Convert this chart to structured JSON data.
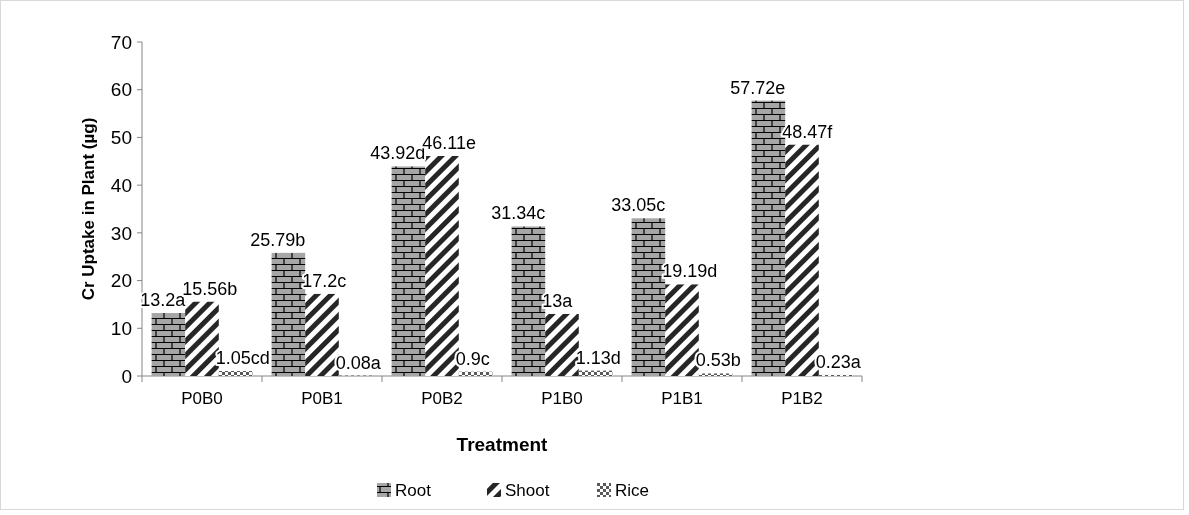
{
  "chart_data": {
    "type": "bar",
    "xlabel": "Treatment",
    "ylabel": "Cr Uptake in Plant (µg)",
    "categories": [
      "P0B0",
      "P0B1",
      "P0B2",
      "P1B0",
      "P1B1",
      "P1B2"
    ],
    "series": [
      {
        "name": "Root",
        "color": "#a6a6a6",
        "values": [
          13.2,
          25.79,
          43.92,
          31.34,
          33.05,
          57.72
        ],
        "value_labels": [
          "13.2a",
          "25.79b",
          "43.92d",
          "31.34c",
          "33.05c",
          "57.72e"
        ]
      },
      {
        "name": "Shoot",
        "color": "#262626",
        "values": [
          15.56,
          17.2,
          46.11,
          13,
          19.19,
          48.47
        ],
        "value_labels": [
          "15.56b",
          "17.2c",
          "46.11e",
          "13a",
          "19.19d",
          "48.47f"
        ]
      },
      {
        "name": "Rice",
        "color": "#595959",
        "values": [
          1.05,
          0.08,
          0.9,
          1.13,
          0.53,
          0.23
        ],
        "value_labels": [
          "1.05cd",
          "0.08a",
          "0.9c",
          "1.13d",
          "0.53b",
          "0.23a"
        ]
      }
    ],
    "ylim": [
      0,
      70
    ],
    "yticks": [
      0,
      10,
      20,
      30,
      40,
      50,
      60,
      70
    ],
    "grid": false,
    "legend": "bottom"
  }
}
